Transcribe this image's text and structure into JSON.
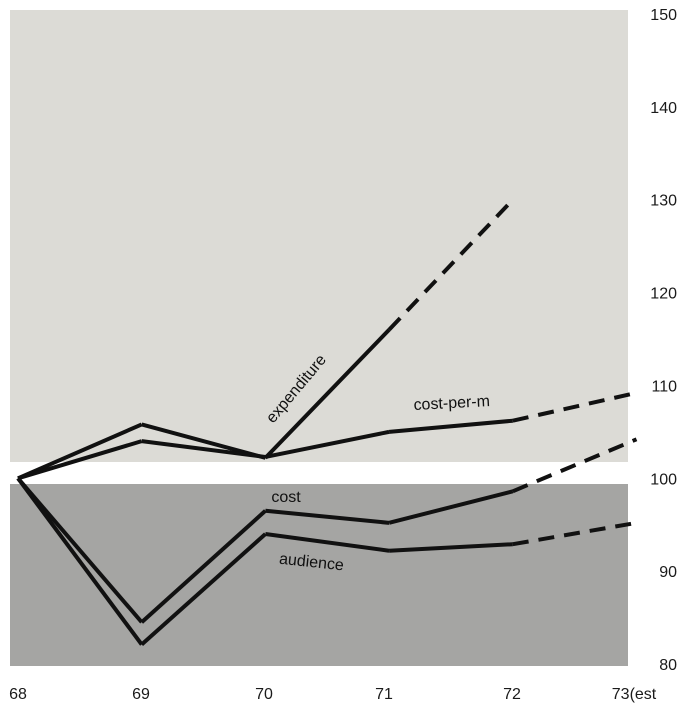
{
  "colors": {
    "upper_panel": "#dcdbd6",
    "lower_panel": "#a5a5a3",
    "line": "#111111",
    "background": "#ffffff"
  },
  "chart_data": {
    "type": "line",
    "title": "",
    "xlabel": "",
    "ylabel": "",
    "categories": [
      "68",
      "69",
      "70",
      "71",
      "72",
      "73(est"
    ],
    "ylim": [
      80,
      150
    ],
    "y_ticks": [
      80,
      90,
      100,
      110,
      120,
      130,
      140,
      150
    ],
    "y_axis_position": "right",
    "grid": false,
    "legend": "none (series labeled directly on lines)",
    "note_segments": "final segment of each series is dashed (estimate)",
    "series": [
      {
        "name": "expenditure",
        "values": [
          100,
          105.8,
          102.2,
          116,
          130,
          null
        ],
        "dashed_from_index": 3
      },
      {
        "name": "cost-per-m",
        "values": [
          100,
          104,
          102.3,
          105,
          106.2,
          109.2
        ],
        "dashed_from_index": 4
      },
      {
        "name": "cost",
        "values": [
          100,
          84.5,
          96.5,
          95.2,
          98.6,
          104.2
        ],
        "dashed_from_index": 4
      },
      {
        "name": "audience",
        "values": [
          100,
          82.1,
          94,
          92.2,
          92.9,
          95.2
        ],
        "dashed_from_index": 4
      }
    ]
  }
}
